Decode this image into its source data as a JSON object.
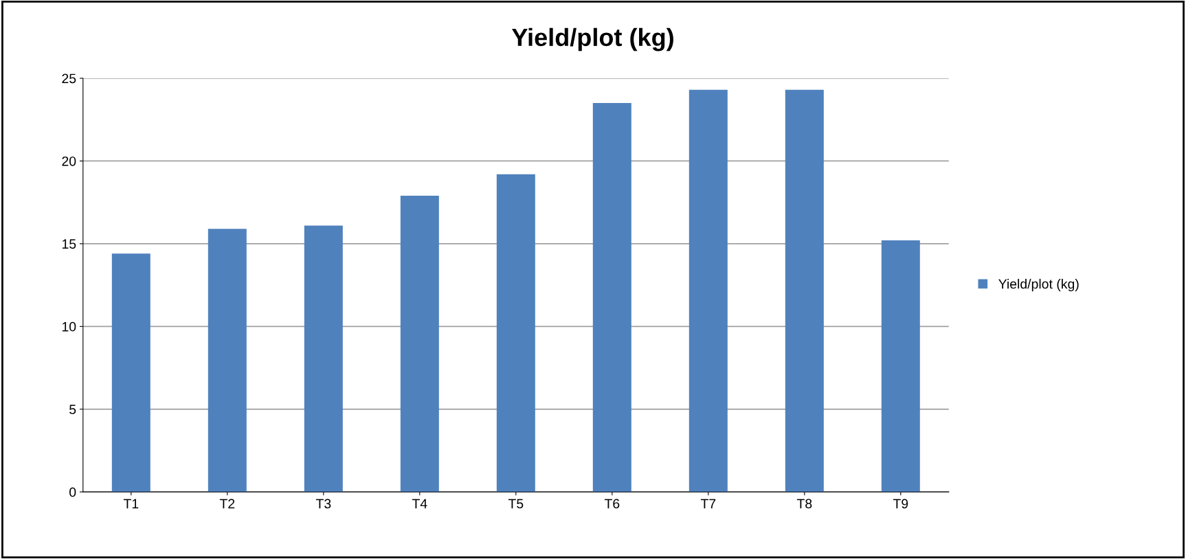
{
  "chart_data": {
    "type": "bar",
    "title": "Yield/plot (kg)",
    "categories": [
      "T1",
      "T2",
      "T3",
      "T4",
      "T5",
      "T6",
      "T7",
      "T8",
      "T9"
    ],
    "series": [
      {
        "name": "Yield/plot (kg)",
        "color": "#4f81bd",
        "values": [
          14.4,
          15.9,
          16.1,
          17.9,
          19.2,
          23.5,
          24.3,
          24.3,
          15.2
        ]
      }
    ],
    "ylim": [
      0,
      25
    ],
    "yticks": [
      0,
      5,
      10,
      15,
      20,
      25
    ],
    "grid": "y",
    "legend": "right"
  }
}
